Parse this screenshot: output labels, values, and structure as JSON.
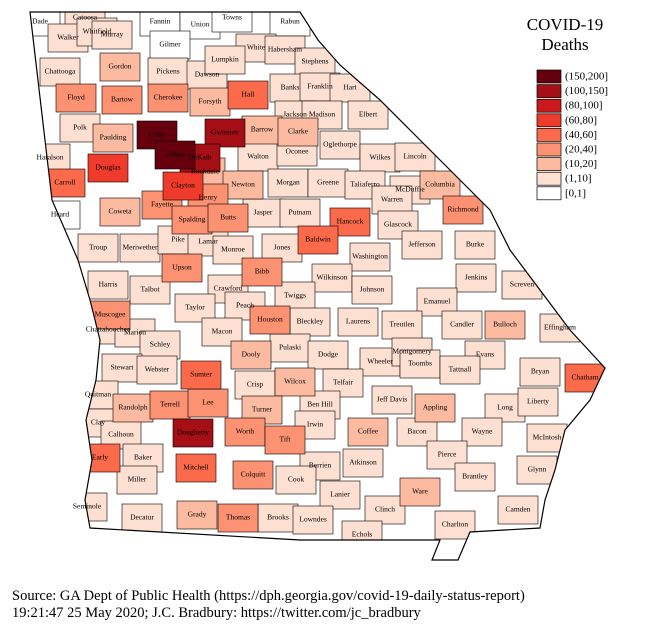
{
  "map": {
    "title": [
      "COVID-19",
      "Deaths"
    ],
    "bins": [
      {
        "label": "(150,200]",
        "color": "#67000d"
      },
      {
        "label": "(100,150]",
        "color": "#a50f15"
      },
      {
        "label": "(80,100]",
        "color": "#cb181d"
      },
      {
        "label": "(60,80]",
        "color": "#ef3b2c"
      },
      {
        "label": "(40,60]",
        "color": "#fb6a4a"
      },
      {
        "label": "(20,40]",
        "color": "#fc9272"
      },
      {
        "label": "(10,20]",
        "color": "#fcbba1"
      },
      {
        "label": "(1,10]",
        "color": "#fee0d2"
      },
      {
        "label": "[0,1]",
        "color": "#ffffff"
      }
    ],
    "counties": [
      {
        "name": "Dade",
        "deaths": "[0,1]"
      },
      {
        "name": "Catoosa",
        "deaths": "(1,10]"
      },
      {
        "name": "Walker",
        "deaths": "(1,10]"
      },
      {
        "name": "Whitfield",
        "deaths": "(1,10]"
      },
      {
        "name": "Murray",
        "deaths": "(1,10]"
      },
      {
        "name": "Fannin",
        "deaths": "[0,1]"
      },
      {
        "name": "Union",
        "deaths": "[0,1]"
      },
      {
        "name": "Towns",
        "deaths": "[0,1]"
      },
      {
        "name": "Rabun",
        "deaths": "[0,1]"
      },
      {
        "name": "Gilmer",
        "deaths": "[0,1]"
      },
      {
        "name": "White",
        "deaths": "(1,10]"
      },
      {
        "name": "Habersham",
        "deaths": "(1,10]"
      },
      {
        "name": "Stephens",
        "deaths": "(1,10]"
      },
      {
        "name": "Chattooga",
        "deaths": "(1,10]"
      },
      {
        "name": "Gordon",
        "deaths": "(10,20]"
      },
      {
        "name": "Pickens",
        "deaths": "(1,10]"
      },
      {
        "name": "Dawson",
        "deaths": "(1,10]"
      },
      {
        "name": "Lumpkin",
        "deaths": "(1,10]"
      },
      {
        "name": "Hall",
        "deaths": "(40,60]"
      },
      {
        "name": "Banks",
        "deaths": "(1,10]"
      },
      {
        "name": "Franklin",
        "deaths": "(1,10]"
      },
      {
        "name": "Hart",
        "deaths": "(1,10]"
      },
      {
        "name": "Floyd",
        "deaths": "(20,40]"
      },
      {
        "name": "Bartow",
        "deaths": "(20,40]"
      },
      {
        "name": "Cherokee",
        "deaths": "(20,40]"
      },
      {
        "name": "Forsyth",
        "deaths": "(10,20]"
      },
      {
        "name": "Jackson",
        "deaths": "(1,10]"
      },
      {
        "name": "Madison",
        "deaths": "(1,10]"
      },
      {
        "name": "Elbert",
        "deaths": "(1,10]"
      },
      {
        "name": "Polk",
        "deaths": "(1,10]"
      },
      {
        "name": "Paulding",
        "deaths": "(10,20]"
      },
      {
        "name": "Cobb",
        "deaths": "(150,200]"
      },
      {
        "name": "Gwinnett",
        "deaths": "(100,150]"
      },
      {
        "name": "Barrow",
        "deaths": "(10,20]"
      },
      {
        "name": "Clarke",
        "deaths": "(10,20]"
      },
      {
        "name": "Oglethorpe",
        "deaths": "(1,10]"
      },
      {
        "name": "Fulton",
        "deaths": "(150,200]"
      },
      {
        "name": "Haralson",
        "deaths": "(1,10]"
      },
      {
        "name": "Douglas",
        "deaths": "(60,80]"
      },
      {
        "name": "DeKalb",
        "deaths": "(100,150]"
      },
      {
        "name": "Rockdale",
        "deaths": "(10,20]"
      },
      {
        "name": "Walton",
        "deaths": "(1,10]"
      },
      {
        "name": "Oconee",
        "deaths": "(1,10]"
      },
      {
        "name": "Wilkes",
        "deaths": "(1,10]"
      },
      {
        "name": "Lincoln",
        "deaths": "(1,10]"
      },
      {
        "name": "Carroll",
        "deaths": "(40,60]"
      },
      {
        "name": "Clayton",
        "deaths": "(60,80]"
      },
      {
        "name": "Newton",
        "deaths": "(10,20]"
      },
      {
        "name": "Morgan",
        "deaths": "(1,10]"
      },
      {
        "name": "Greene",
        "deaths": "(1,10]"
      },
      {
        "name": "Taliaferro",
        "deaths": "(1,10]"
      },
      {
        "name": "McDuffie",
        "deaths": "(1,10]"
      },
      {
        "name": "Columbia",
        "deaths": "(10,20]"
      },
      {
        "name": "Heard",
        "deaths": "[0,1]"
      },
      {
        "name": "Coweta",
        "deaths": "(10,20]"
      },
      {
        "name": "Fayette",
        "deaths": "(20,40]"
      },
      {
        "name": "Henry",
        "deaths": "(20,40]"
      },
      {
        "name": "Spalding",
        "deaths": "(20,40]"
      },
      {
        "name": "Butts",
        "deaths": "(20,40]"
      },
      {
        "name": "Jasper",
        "deaths": "(1,10]"
      },
      {
        "name": "Putnam",
        "deaths": "(1,10]"
      },
      {
        "name": "Hancock",
        "deaths": "(40,60]"
      },
      {
        "name": "Warren",
        "deaths": "(1,10]"
      },
      {
        "name": "Glascock",
        "deaths": "(1,10]"
      },
      {
        "name": "Richmond",
        "deaths": "(20,40]"
      },
      {
        "name": "Troup",
        "deaths": "(1,10]"
      },
      {
        "name": "Meriwether",
        "deaths": "(1,10]"
      },
      {
        "name": "Pike",
        "deaths": "(1,10]"
      },
      {
        "name": "Lamar",
        "deaths": "(1,10]"
      },
      {
        "name": "Monroe",
        "deaths": "(1,10]"
      },
      {
        "name": "Jones",
        "deaths": "(1,10]"
      },
      {
        "name": "Baldwin",
        "deaths": "(40,60]"
      },
      {
        "name": "Washington",
        "deaths": "(1,10]"
      },
      {
        "name": "Jefferson",
        "deaths": "(1,10]"
      },
      {
        "name": "Burke",
        "deaths": "(1,10]"
      },
      {
        "name": "Upson",
        "deaths": "(20,40]"
      },
      {
        "name": "Bibb",
        "deaths": "(20,40]"
      },
      {
        "name": "Wilkinson",
        "deaths": "(1,10]"
      },
      {
        "name": "Jenkins",
        "deaths": "(1,10]"
      },
      {
        "name": "Screven",
        "deaths": "(1,10]"
      },
      {
        "name": "Harris",
        "deaths": "(1,10]"
      },
      {
        "name": "Talbot",
        "deaths": "(1,10]"
      },
      {
        "name": "Crawford",
        "deaths": "(1,10]"
      },
      {
        "name": "Twiggs",
        "deaths": "(1,10]"
      },
      {
        "name": "Johnson",
        "deaths": "(1,10]"
      },
      {
        "name": "Emanuel",
        "deaths": "(1,10]"
      },
      {
        "name": "Muscogee",
        "deaths": "(20,40]"
      },
      {
        "name": "Taylor",
        "deaths": "(1,10]"
      },
      {
        "name": "Peach",
        "deaths": "(1,10]"
      },
      {
        "name": "Houston",
        "deaths": "(20,40]"
      },
      {
        "name": "Bleckley",
        "deaths": "(1,10]"
      },
      {
        "name": "Laurens",
        "deaths": "(1,10]"
      },
      {
        "name": "Treutlen",
        "deaths": "(1,10]"
      },
      {
        "name": "Candler",
        "deaths": "(1,10]"
      },
      {
        "name": "Bulloch",
        "deaths": "(10,20]"
      },
      {
        "name": "Effingham",
        "deaths": "(1,10]"
      },
      {
        "name": "Chattahoochee",
        "deaths": "(1,10]"
      },
      {
        "name": "Marion",
        "deaths": "(1,10]"
      },
      {
        "name": "Macon",
        "deaths": "(1,10]"
      },
      {
        "name": "Schley",
        "deaths": "(1,10]"
      },
      {
        "name": "Dooly",
        "deaths": "(10,20]"
      },
      {
        "name": "Pulaski",
        "deaths": "(1,10]"
      },
      {
        "name": "Dodge",
        "deaths": "(1,10]"
      },
      {
        "name": "Wheeler",
        "deaths": "(1,10]"
      },
      {
        "name": "Montgomery",
        "deaths": "(1,10]"
      },
      {
        "name": "Toombs",
        "deaths": "(1,10]"
      },
      {
        "name": "Evans",
        "deaths": "(1,10]"
      },
      {
        "name": "Tattnall",
        "deaths": "(1,10]"
      },
      {
        "name": "Stewart",
        "deaths": "(1,10]"
      },
      {
        "name": "Webster",
        "deaths": "(1,10]"
      },
      {
        "name": "Sumter",
        "deaths": "(40,60]"
      },
      {
        "name": "Telfair",
        "deaths": "(1,10]"
      },
      {
        "name": "Bryan",
        "deaths": "(1,10]"
      },
      {
        "name": "Chatham",
        "deaths": "(40,60]"
      },
      {
        "name": "Crisp",
        "deaths": "(1,10]"
      },
      {
        "name": "Wilcox",
        "deaths": "(10,20]"
      },
      {
        "name": "Quitman",
        "deaths": "(1,10]"
      },
      {
        "name": "Randolph",
        "deaths": "(10,20]"
      },
      {
        "name": "Terrell",
        "deaths": "(20,40]"
      },
      {
        "name": "Lee",
        "deaths": "(20,40]"
      },
      {
        "name": "Ben Hill",
        "deaths": "(1,10]"
      },
      {
        "name": "Jeff Davis",
        "deaths": "(1,10]"
      },
      {
        "name": "Appling",
        "deaths": "(10,20]"
      },
      {
        "name": "Long",
        "deaths": "(1,10]"
      },
      {
        "name": "Liberty",
        "deaths": "(1,10]"
      },
      {
        "name": "Turner",
        "deaths": "(10,20]"
      },
      {
        "name": "Irwin",
        "deaths": "(1,10]"
      },
      {
        "name": "Coffee",
        "deaths": "(10,20]"
      },
      {
        "name": "Bacon",
        "deaths": "(1,10]"
      },
      {
        "name": "Wayne",
        "deaths": "(1,10]"
      },
      {
        "name": "McIntosh",
        "deaths": "(1,10]"
      },
      {
        "name": "Clay",
        "deaths": "(1,10]"
      },
      {
        "name": "Calhoun",
        "deaths": "(1,10]"
      },
      {
        "name": "Dougherty",
        "deaths": "(100,150]"
      },
      {
        "name": "Worth",
        "deaths": "(20,40]"
      },
      {
        "name": "Tift",
        "deaths": "(20,40]"
      },
      {
        "name": "Pierce",
        "deaths": "(1,10]"
      },
      {
        "name": "Early",
        "deaths": "(40,60]"
      },
      {
        "name": "Baker",
        "deaths": "(1,10]"
      },
      {
        "name": "Mitchell",
        "deaths": "(40,60]"
      },
      {
        "name": "Berrien",
        "deaths": "(1,10]"
      },
      {
        "name": "Atkinson",
        "deaths": "(1,10]"
      },
      {
        "name": "Brantley",
        "deaths": "(1,10]"
      },
      {
        "name": "Glynn",
        "deaths": "(1,10]"
      },
      {
        "name": "Miller",
        "deaths": "(1,10]"
      },
      {
        "name": "Colquitt",
        "deaths": "(20,40]"
      },
      {
        "name": "Cook",
        "deaths": "(1,10]"
      },
      {
        "name": "Ware",
        "deaths": "(10,20]"
      },
      {
        "name": "Lanier",
        "deaths": "(1,10]"
      },
      {
        "name": "Seminole",
        "deaths": "(1,10]"
      },
      {
        "name": "Decatur",
        "deaths": "(1,10]"
      },
      {
        "name": "Grady",
        "deaths": "(10,20]"
      },
      {
        "name": "Thomas",
        "deaths": "(20,40]"
      },
      {
        "name": "Brooks",
        "deaths": "(1,10]"
      },
      {
        "name": "Lowndes",
        "deaths": "(1,10]"
      },
      {
        "name": "Clinch",
        "deaths": "(1,10]"
      },
      {
        "name": "Camden",
        "deaths": "(1,10]"
      },
      {
        "name": "Charlton",
        "deaths": "(1,10]"
      },
      {
        "name": "Echols",
        "deaths": "(1,10]"
      }
    ],
    "source": [
      "Source: GA Dept of Public Health (https://dph.georgia.gov/covid-19-daily-status-report)",
      "19:21:47  25 May 2020; J.C. Bradbury: https://twitter.com/jc_bradbury"
    ]
  }
}
